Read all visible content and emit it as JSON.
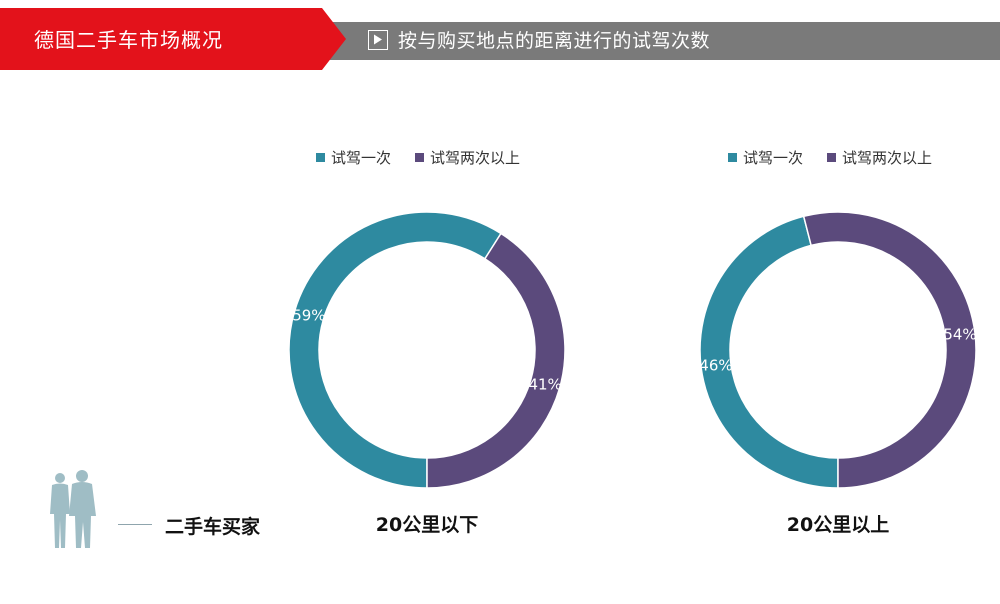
{
  "header": {
    "title": "德国二手车市场概况",
    "section_title": "按与购买地点的距离进行的试驾次数"
  },
  "colors": {
    "red": "#e3121b",
    "gray_bar": "#7a7a7a",
    "teal": "#2e8aa0",
    "purple": "#5b4a7c",
    "figure": "#8fb2bb"
  },
  "buyer_label": "二手车买家",
  "chart_data": [
    {
      "type": "pie",
      "donut": true,
      "caption": "20公里以下",
      "legend": [
        "试驾一次",
        "试驾两次以上"
      ],
      "slices": [
        {
          "label": "试驾一次",
          "value": 59,
          "display": "59%",
          "color": "#2e8aa0"
        },
        {
          "label": "试驾两次以上",
          "value": 41,
          "display": "41%",
          "color": "#5b4a7c"
        }
      ]
    },
    {
      "type": "pie",
      "donut": true,
      "caption": "20公里以上",
      "legend": [
        "试驾一次",
        "试驾两次以上"
      ],
      "slices": [
        {
          "label": "试驾一次",
          "value": 46,
          "display": "46%",
          "color": "#2e8aa0"
        },
        {
          "label": "试驾两次以上",
          "value": 54,
          "display": "54%",
          "color": "#5b4a7c"
        }
      ]
    }
  ]
}
